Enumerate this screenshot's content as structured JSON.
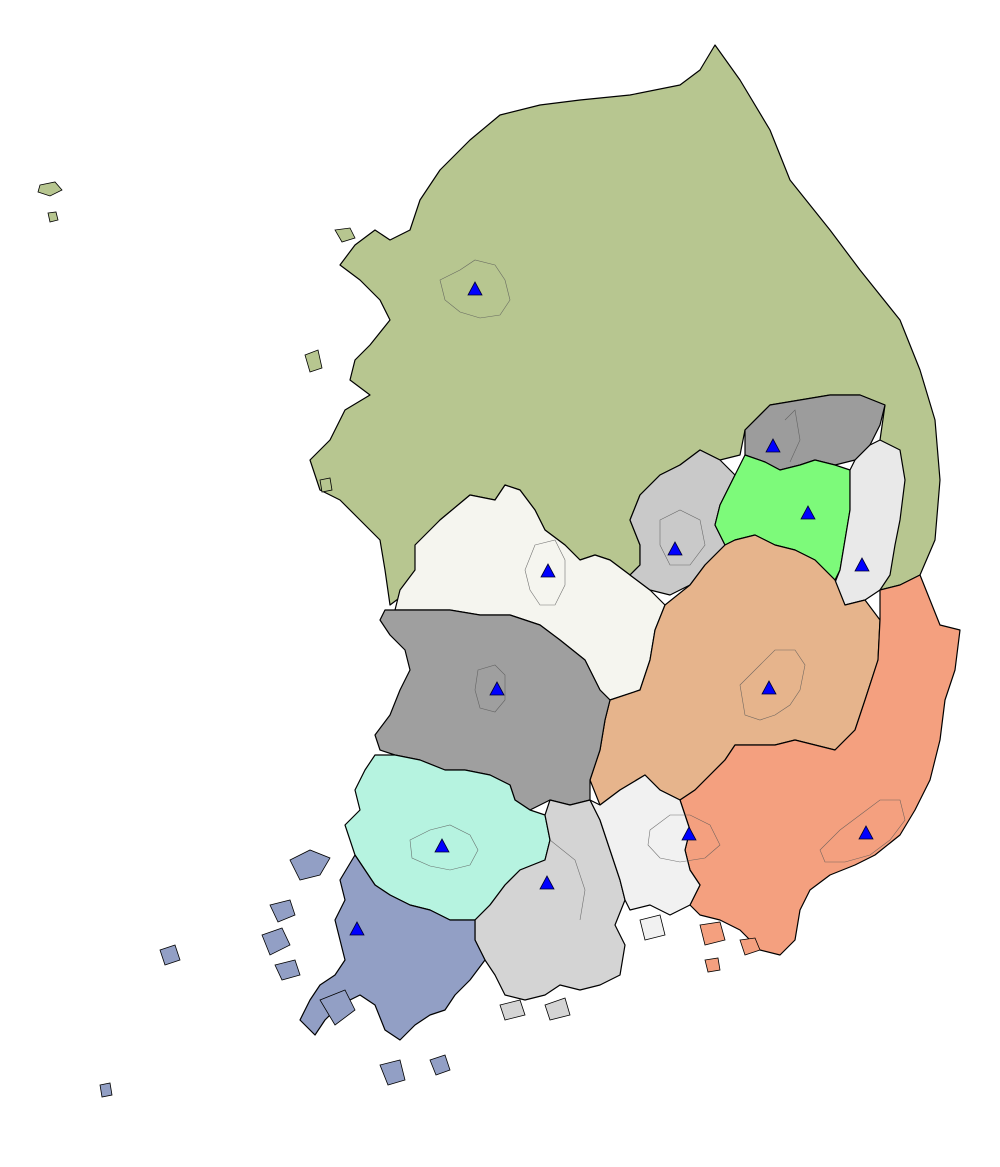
{
  "map": {
    "colors": {
      "background": "#ffffff",
      "outline": "#000000",
      "marker": "#0000ff"
    },
    "marker_shape": "triangle-icon",
    "regions": [
      {
        "id": "northwest",
        "color": "#b7c690"
      },
      {
        "id": "central-east-top",
        "color": "#9c9c9c"
      },
      {
        "id": "central-east-green",
        "color": "#7dfa7a"
      },
      {
        "id": "east-coast-small",
        "color": "#e9e9e9"
      },
      {
        "id": "central-small-gray",
        "color": "#c9c9c9"
      },
      {
        "id": "central-cream",
        "color": "#f5f5ef"
      },
      {
        "id": "southeast-tan",
        "color": "#e6b48c"
      },
      {
        "id": "southeast-salmon",
        "color": "#f4a07f"
      },
      {
        "id": "west-gray",
        "color": "#9f9f9f"
      },
      {
        "id": "southwest-mint",
        "color": "#b6f3e0"
      },
      {
        "id": "south-lightgray",
        "color": "#d4d4d4"
      },
      {
        "id": "south-offwhite",
        "color": "#f1f1f1"
      },
      {
        "id": "southwest-blue",
        "color": "#929fc5"
      }
    ],
    "marker_count": 13
  }
}
